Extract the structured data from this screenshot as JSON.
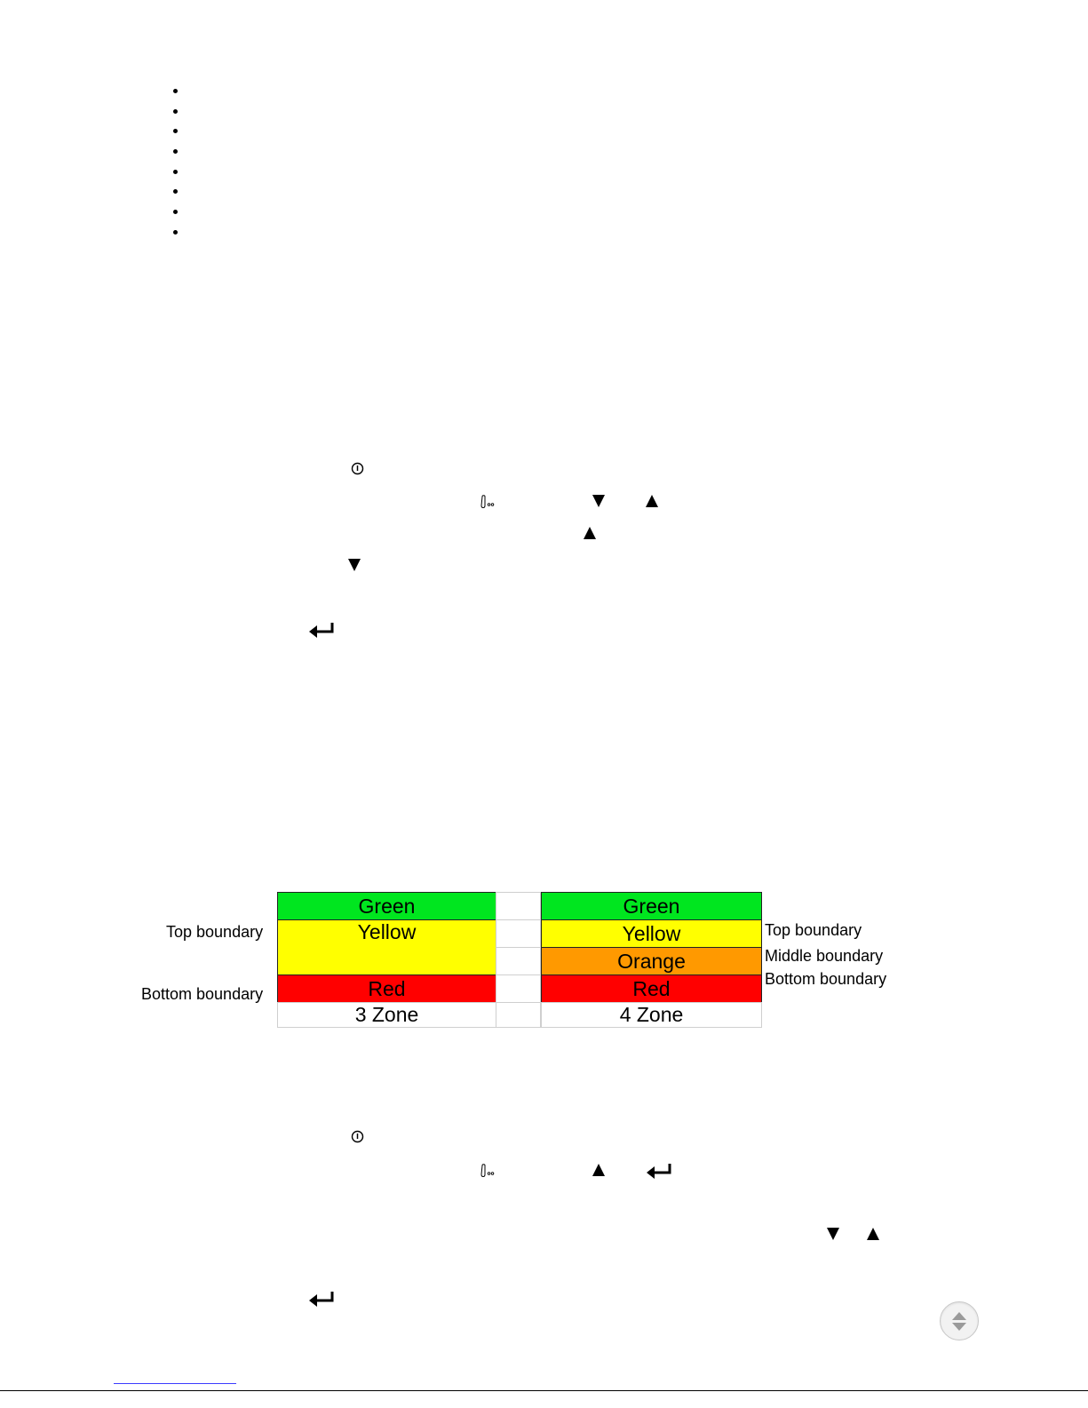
{
  "bullet_list": {
    "count": 8
  },
  "icons": {
    "power": "power-icon",
    "hand": "hand-pointer-icon",
    "down": "triangle-down-icon",
    "up": "triangle-up-icon",
    "enter": "enter-return-icon",
    "scroll": "scroll-up-down-icon"
  },
  "zone_diagram": {
    "three_zone": {
      "green": "Green",
      "yellow": "Yellow",
      "red": "Red",
      "caption": "3 Zone",
      "top_label": "Top boundary",
      "bottom_label": "Bottom boundary"
    },
    "four_zone": {
      "green": "Green",
      "yellow": "Yellow",
      "orange": "Orange",
      "red": "Red",
      "caption": "4 Zone",
      "top_label": "Top boundary",
      "middle_label": "Middle boundary",
      "bottom_label": "Bottom boundary"
    },
    "colors": {
      "green": "#00e61f",
      "yellow": "#ffff00",
      "orange": "#ff9900",
      "red": "#ff0000"
    }
  }
}
